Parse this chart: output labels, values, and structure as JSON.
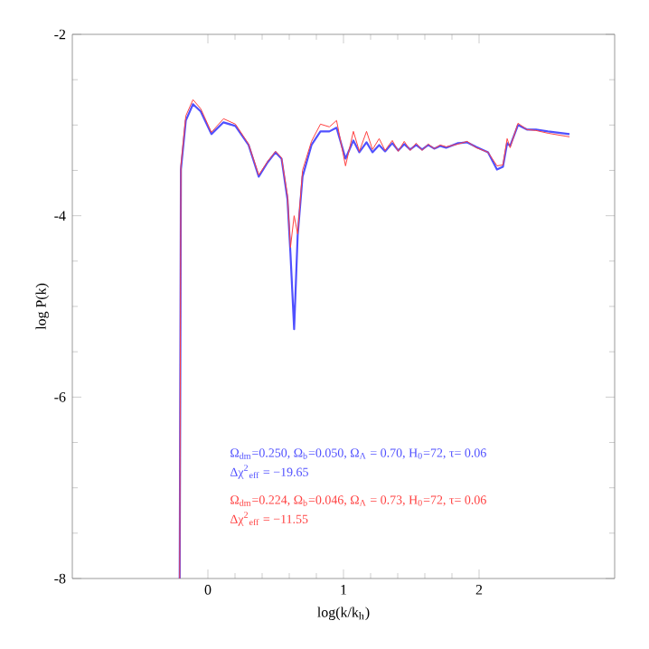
{
  "chart_data": {
    "type": "line",
    "xlabel": "log(k/k$_{h}$)",
    "ylabel": "log P(k)",
    "xlim": [
      -1,
      3
    ],
    "ylim": [
      -8,
      -2
    ],
    "xticks": [
      0,
      1,
      2
    ],
    "yticks": [
      -2,
      -4,
      -6,
      -8
    ],
    "marker": "none",
    "line_style": "solid",
    "annotations": [
      "Ω$_{dm}$=0.250, Ω$_{b}$=0.050, Ω$_{Λ}$ = 0.70, H$_{0}$=72, τ= 0.06",
      "Δχ$^{2}$$_{eff}$ = −19.65",
      "Ω$_{dm}$=0.224, Ω$_{b}$=0.046, Ω$_{Λ}$ = 0.73, H$_{0}$=72, τ= 0.06",
      "Δχ$^{2}$$_{eff}$ = −11.55"
    ],
    "x": [
      -0.208,
      -0.199,
      -0.163,
      -0.11,
      -0.053,
      0.026,
      0.115,
      0.203,
      0.3,
      0.375,
      0.441,
      0.499,
      0.543,
      0.587,
      0.609,
      0.636,
      0.662,
      0.698,
      0.764,
      0.83,
      0.896,
      0.949,
      1.015,
      1.073,
      1.117,
      1.17,
      1.214,
      1.263,
      1.307,
      1.36,
      1.404,
      1.448,
      1.492,
      1.536,
      1.58,
      1.625,
      1.669,
      1.713,
      1.757,
      1.845,
      1.912,
      1.978,
      2.066,
      2.132,
      2.176,
      2.207,
      2.229,
      2.287,
      2.353,
      2.419,
      2.508,
      2.667
    ],
    "series": [
      {
        "color": "#5050ff",
        "values": [
          -8,
          -3.49,
          -2.95,
          -2.77,
          -2.85,
          -3.1,
          -2.97,
          -3.01,
          -3.22,
          -3.57,
          -3.41,
          -3.3,
          -3.37,
          -3.82,
          -4.42,
          -5.25,
          -4.22,
          -3.57,
          -3.22,
          -3.07,
          -3.07,
          -3.03,
          -3.37,
          -3.17,
          -3.3,
          -3.19,
          -3.3,
          -3.22,
          -3.29,
          -3.2,
          -3.28,
          -3.21,
          -3.27,
          -3.22,
          -3.27,
          -3.22,
          -3.26,
          -3.23,
          -3.25,
          -3.2,
          -3.19,
          -3.24,
          -3.3,
          -3.49,
          -3.46,
          -3.2,
          -3.23,
          -3.0,
          -3.05,
          -3.05,
          -3.07,
          -3.1
        ]
      },
      {
        "color": "#ff4040",
        "values": [
          -8,
          -3.45,
          -2.9,
          -2.72,
          -2.82,
          -3.08,
          -2.93,
          -2.99,
          -3.21,
          -3.55,
          -3.4,
          -3.29,
          -3.36,
          -3.78,
          -4.35,
          -4.0,
          -4.2,
          -3.5,
          -3.18,
          -2.99,
          -3.02,
          -2.95,
          -3.45,
          -3.07,
          -3.29,
          -3.07,
          -3.27,
          -3.15,
          -3.28,
          -3.17,
          -3.29,
          -3.18,
          -3.28,
          -3.2,
          -3.28,
          -3.21,
          -3.26,
          -3.22,
          -3.24,
          -3.21,
          -3.18,
          -3.25,
          -3.3,
          -3.45,
          -3.44,
          -3.15,
          -3.25,
          -2.98,
          -3.05,
          -3.06,
          -3.09,
          -3.13
        ]
      }
    ]
  }
}
